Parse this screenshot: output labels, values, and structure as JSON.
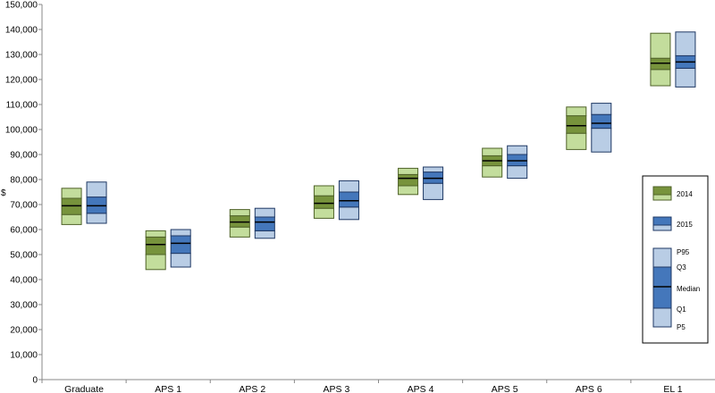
{
  "chart_data": {
    "type": "boxplot",
    "ylabel": "$",
    "ylim": [
      0,
      150000
    ],
    "ytick_step": 10000,
    "grid": false,
    "legend_position": "right",
    "categories": [
      "Graduate",
      "APS 1",
      "APS 2",
      "APS 3",
      "APS 4",
      "APS 5",
      "APS 6",
      "EL 1"
    ],
    "series": [
      {
        "name": "2014",
        "colors": {
          "light": "#c3dd9c",
          "dark": "#77933c",
          "stroke": "#4f6228"
        },
        "boxes": [
          {
            "p5": 62000,
            "q1": 66000,
            "median": 69500,
            "q3": 72500,
            "p95": 76500
          },
          {
            "p5": 44000,
            "q1": 50000,
            "median": 54000,
            "q3": 57000,
            "p95": 59500
          },
          {
            "p5": 57000,
            "q1": 61000,
            "median": 63000,
            "q3": 65500,
            "p95": 68000
          },
          {
            "p5": 64500,
            "q1": 68500,
            "median": 70500,
            "q3": 73500,
            "p95": 77500
          },
          {
            "p5": 74000,
            "q1": 77500,
            "median": 80500,
            "q3": 82000,
            "p95": 84500
          },
          {
            "p5": 81000,
            "q1": 85500,
            "median": 87500,
            "q3": 89500,
            "p95": 92500
          },
          {
            "p5": 92000,
            "q1": 98500,
            "median": 101500,
            "q3": 105500,
            "p95": 109000
          },
          {
            "p5": 117500,
            "q1": 124000,
            "median": 126500,
            "q3": 128500,
            "p95": 138500
          }
        ]
      },
      {
        "name": "2015",
        "colors": {
          "light": "#b9cde5",
          "dark": "#4477bb",
          "stroke": "#1f3864"
        },
        "boxes": [
          {
            "p5": 62500,
            "q1": 66500,
            "median": 69500,
            "q3": 73000,
            "p95": 79000
          },
          {
            "p5": 45000,
            "q1": 50500,
            "median": 54500,
            "q3": 57500,
            "p95": 60000
          },
          {
            "p5": 56500,
            "q1": 59500,
            "median": 63000,
            "q3": 65000,
            "p95": 68500
          },
          {
            "p5": 64000,
            "q1": 69000,
            "median": 71500,
            "q3": 75000,
            "p95": 79500
          },
          {
            "p5": 72000,
            "q1": 78500,
            "median": 80500,
            "q3": 83000,
            "p95": 85000
          },
          {
            "p5": 80500,
            "q1": 85500,
            "median": 87500,
            "q3": 90000,
            "p95": 93500
          },
          {
            "p5": 91000,
            "q1": 100500,
            "median": 102500,
            "q3": 106000,
            "p95": 110500
          },
          {
            "p5": 117000,
            "q1": 124500,
            "median": 127000,
            "q3": 129500,
            "p95": 139000
          }
        ]
      }
    ],
    "legend": {
      "series_labels": [
        "2014",
        "2015"
      ],
      "key_labels": [
        "P95",
        "Q3",
        "Median",
        "Q1",
        "P5"
      ]
    }
  }
}
